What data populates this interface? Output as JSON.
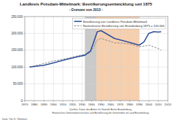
{
  "chart_data": {
    "type": "line",
    "title": "Landkreis Potsdam-Mittelmark: Bevölkerungsentwicklung seit 1875",
    "subtitle": "- Grenzen von 2013 -",
    "xlim": [
      1870,
      2020
    ],
    "xticks": [
      1870,
      1880,
      1890,
      1900,
      1910,
      1920,
      1930,
      1940,
      1950,
      1960,
      1970,
      1980,
      1990,
      2000,
      2010,
      2020
    ],
    "ylim": [
      0,
      250000
    ],
    "yticks": [
      0,
      {
        "value": 50000,
        "label": "50.000"
      },
      {
        "value": 100000,
        "label": "100.000"
      },
      {
        "value": 150000,
        "label": "150.000"
      },
      {
        "value": 200000,
        "label": "200.000"
      },
      {
        "value": 250000,
        "label": "250.000"
      }
    ],
    "grid": true,
    "legend": "top-right",
    "shaded_periods": [
      {
        "start": 1933,
        "end": 1945,
        "color": "#c9c9c9"
      },
      {
        "start": 1945,
        "end": 1990,
        "color": "#f6cfae"
      }
    ],
    "x": [
      1875,
      1890,
      1900,
      1910,
      1925,
      1933,
      1939,
      1946,
      1950,
      1964,
      1971,
      1981,
      1990,
      1995,
      2000,
      2005,
      2010,
      2013
    ],
    "series": [
      {
        "name": "Bevölkerung von Landkreis Potsdam-Mittelmark",
        "color": "#2b4c9b",
        "line_style": "solid",
        "values": [
          100000,
          105000,
          112000,
          120000,
          130000,
          135000,
          148000,
          205000,
          208000,
          185000,
          180000,
          172000,
          165000,
          175000,
          200000,
          205000,
          204000,
          205000
        ]
      },
      {
        "name": "Normalisierte Bevölkerung von Brandenburg 1875 = 100.000",
        "color": "#8a8a8a",
        "line_style": "dashed",
        "values": [
          100000,
          110000,
          118000,
          123000,
          133000,
          138000,
          143000,
          180000,
          185000,
          172000,
          171000,
          168000,
          160000,
          162000,
          165000,
          160000,
          155000,
          150000
        ]
      }
    ],
    "sources": [
      "Quellen: Daten des Amtes für Statistik Berlin-Brandenburg",
      "Historisches Gemeindeverzeichnis und Bevölkerung der Gemeinden im Land Brandenburg"
    ],
    "credit": "Datei: Tim G. Ollerbach"
  }
}
